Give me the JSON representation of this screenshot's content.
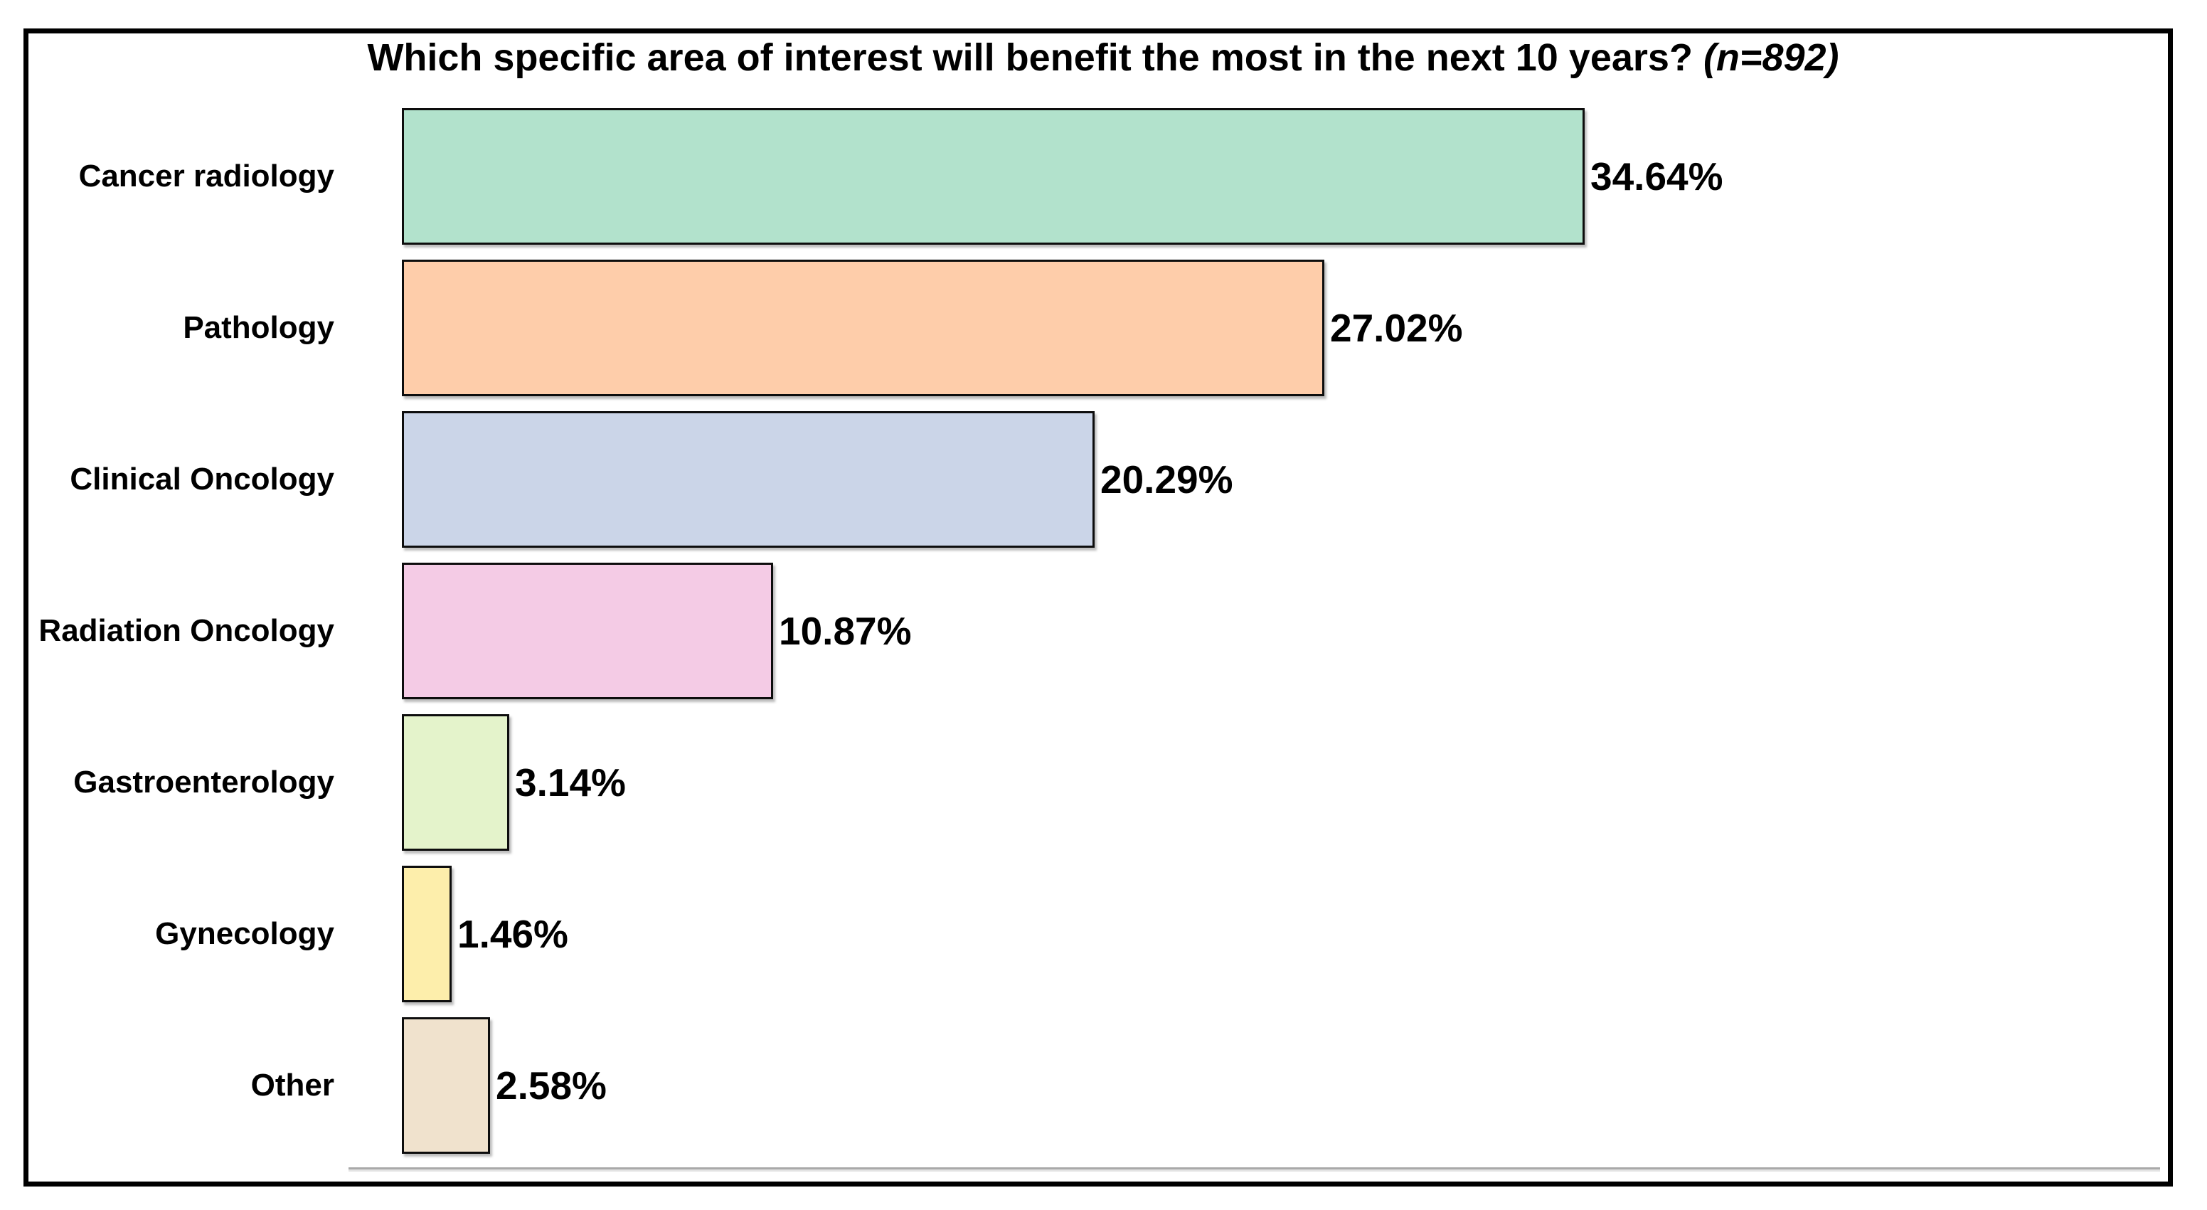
{
  "title": {
    "prefix": "Which specific area of interest will benefit the most in the next 10 years? ",
    "italic_part": "(n=892)"
  },
  "chart_data": {
    "type": "bar",
    "orientation": "horizontal",
    "title": "Which specific area of interest will benefit the most in the next 10 years? (n=892)",
    "sample_size": 892,
    "categories": [
      "Cancer radiology",
      "Pathology",
      "Clinical Oncology",
      "Radiation Oncology",
      "Gastroenterology",
      "Gynecology",
      "Other"
    ],
    "values": [
      34.64,
      27.02,
      20.29,
      10.87,
      3.14,
      1.46,
      2.58
    ],
    "value_labels": [
      "34.64%",
      "27.02%",
      "20.29%",
      "10.87%",
      "3.14%",
      "1.46%",
      "2.58%"
    ],
    "bar_colors": [
      "#b2e2cc",
      "#fecdaa",
      "#cbd5e8",
      "#f4cbe5",
      "#e4f3cb",
      "#fdeeab",
      "#f0e2cd"
    ],
    "bar_border_color": "#0d0d0d",
    "value_unit": "%",
    "xlim": [
      0,
      51.5
    ],
    "grid": "off",
    "legend": "none",
    "axis_line_color": "#a9a9a9"
  }
}
